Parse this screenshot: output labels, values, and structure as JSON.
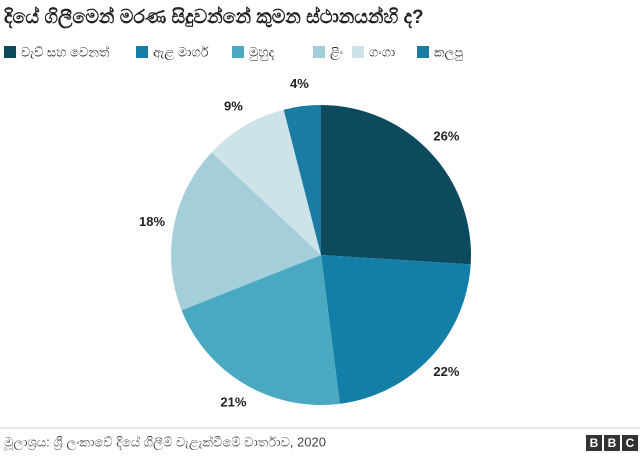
{
  "chart_data": {
    "type": "pie",
    "title": "දියේ ගිලීමෙන් මරණ සිදුවන්නේ කුමන ස්ථානයන්හි ද?",
    "categories": [
      "වැව් සහ වෙනත්",
      "ඇළ මාර්ග",
      "මුහුද",
      "ළිං",
      "ගංගා",
      "කලපු"
    ],
    "values": [
      26,
      22,
      21,
      18,
      9,
      4
    ],
    "value_labels": [
      "26%",
      "22%",
      "21%",
      "18%",
      "9%",
      "4%"
    ],
    "colors": [
      "#0e4a5e",
      "#137fa6",
      "#4aa9c1",
      "#a3ceda",
      "#cde3e8",
      "#1a7ca3"
    ],
    "source": "මූලාශ්‍රය: ශ්‍රී ලංකාවේ දියේ ගිලීම් වැළැක්වීමේ වාර්තාව, 2020",
    "logo": [
      "B",
      "B",
      "C"
    ]
  }
}
